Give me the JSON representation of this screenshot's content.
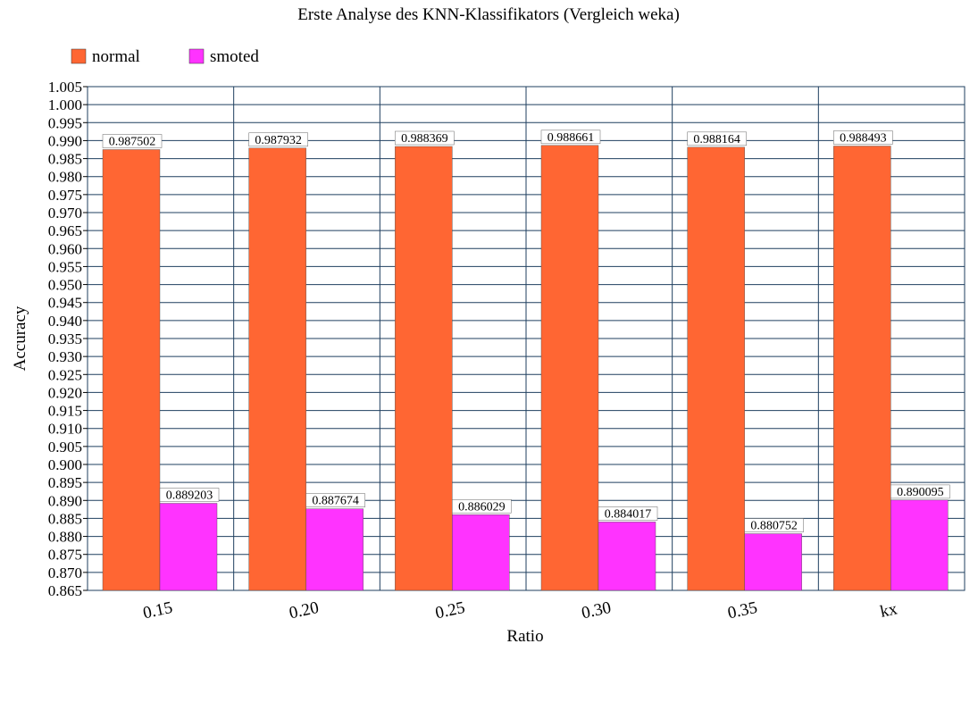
{
  "chart_data": {
    "type": "bar",
    "title": "Erste Analyse des KNN-Klassifikators (Vergleich weka)",
    "xlabel": "Ratio",
    "ylabel": "Accuracy",
    "categories": [
      "0.15",
      "0.20",
      "0.25",
      "0.30",
      "0.35",
      "kx"
    ],
    "series": [
      {
        "name": "normal",
        "color": "#ff6633",
        "values": [
          0.987502,
          0.987932,
          0.988369,
          0.988661,
          0.988164,
          0.988493
        ],
        "labels": [
          "0.987502",
          "0.987932",
          "0.988369",
          "0.988661",
          "0.988164",
          "0.988493"
        ]
      },
      {
        "name": "smoted",
        "color": "#ff33ff",
        "values": [
          0.889203,
          0.887674,
          0.886029,
          0.884017,
          0.880752,
          0.890095
        ],
        "labels": [
          "0.889203",
          "0.887674",
          "0.886029",
          "0.884017",
          "0.880752",
          "0.890095"
        ]
      }
    ],
    "ylim": [
      0.865,
      1.005
    ],
    "ystep": 0.005,
    "yticks": [
      "0.865",
      "0.870",
      "0.875",
      "0.880",
      "0.885",
      "0.890",
      "0.895",
      "0.900",
      "0.905",
      "0.910",
      "0.915",
      "0.920",
      "0.925",
      "0.930",
      "0.935",
      "0.940",
      "0.945",
      "0.950",
      "0.955",
      "0.960",
      "0.965",
      "0.970",
      "0.975",
      "0.980",
      "0.985",
      "0.990",
      "0.995",
      "1.000",
      "1.005"
    ],
    "grid": true,
    "legend": "top-left",
    "grid_color": "#1f3f5f"
  }
}
